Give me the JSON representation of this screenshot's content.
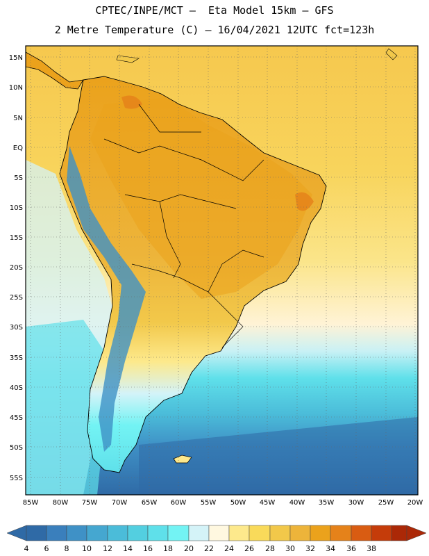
{
  "header": {
    "line1": "CPTEC/INPE/MCT –  Eta Model 15km – GFS",
    "line2": "2 Metre Temperature (C) – 16/04/2021 12UTC fct=123h"
  },
  "map": {
    "lat_labels": [
      "15N",
      "10N",
      "5N",
      "EQ",
      "5S",
      "10S",
      "15S",
      "20S",
      "25S",
      "30S",
      "35S",
      "40S",
      "45S",
      "50S",
      "55S"
    ],
    "lon_labels": [
      "85W",
      "80W",
      "75W",
      "70W",
      "65W",
      "60W",
      "55W",
      "50W",
      "45W",
      "40W",
      "35W",
      "30W",
      "25W",
      "20W"
    ]
  },
  "colorbar": {
    "labels": [
      "4",
      "6",
      "8",
      "10",
      "12",
      "14",
      "16",
      "18",
      "20",
      "22",
      "24",
      "26",
      "28",
      "30",
      "32",
      "34",
      "36",
      "38"
    ],
    "colors": [
      "#2f6aa6",
      "#3a7fbc",
      "#3f91c6",
      "#45a7d0",
      "#4bbcd9",
      "#53cfe0",
      "#5fe0ea",
      "#73f3f4",
      "#d4f3f8",
      "#fff8e0",
      "#fde98c",
      "#f9da5a",
      "#f2c84a",
      "#edb43a",
      "#eba21c",
      "#e5821a",
      "#d95c12",
      "#c53c0a",
      "#ab2807"
    ],
    "left_arrow_color": "#2f6aa6",
    "right_arrow_color": "#ab2807"
  }
}
